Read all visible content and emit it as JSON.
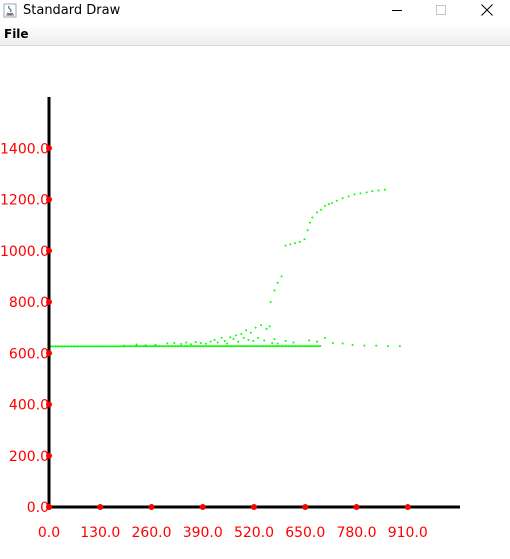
{
  "window": {
    "title": "Standard Draw",
    "icons": {
      "app": "java-cup-icon",
      "minimize": "minimize-icon",
      "maximize": "maximize-icon",
      "close": "close-icon"
    }
  },
  "menu": {
    "file_label": "File"
  },
  "colors": {
    "axis": "#000000",
    "tick": "#ff0000",
    "points": "#00ff00"
  },
  "chart_data": {
    "type": "scatter",
    "title": "",
    "xlabel": "",
    "ylabel": "",
    "xlim": [
      0,
      1040
    ],
    "ylim": [
      0,
      1400
    ],
    "x_ticks": [
      0,
      130,
      260,
      390,
      520,
      650,
      780,
      910
    ],
    "x_tick_labels": [
      "0.0",
      "130.0",
      "260.0",
      "390.0",
      "520.0",
      "650.0",
      "780.0",
      "910.0"
    ],
    "y_ticks": [
      0,
      200,
      400,
      600,
      800,
      1000,
      1200,
      1400
    ],
    "y_tick_labels": [
      "0.0",
      "200.0",
      "400.0",
      "600.0",
      "800.0",
      "1000.0",
      "1200.0",
      "1400.0"
    ],
    "grid": false,
    "series": [
      {
        "points": [
          [
            0,
            627
          ],
          [
            8,
            627
          ],
          [
            16,
            627
          ],
          [
            24,
            627
          ],
          [
            32,
            627
          ],
          [
            40,
            627
          ],
          [
            48,
            627
          ],
          [
            56,
            627
          ],
          [
            64,
            627
          ],
          [
            72,
            627
          ],
          [
            80,
            627
          ],
          [
            88,
            627
          ],
          [
            96,
            627
          ],
          [
            104,
            627
          ],
          [
            112,
            627
          ],
          [
            120,
            627
          ],
          [
            128,
            627
          ],
          [
            136,
            627
          ],
          [
            144,
            627
          ],
          [
            152,
            627
          ],
          [
            160,
            627
          ],
          [
            168,
            627
          ],
          [
            176,
            627
          ],
          [
            184,
            627
          ],
          [
            192,
            627
          ],
          [
            200,
            628
          ],
          [
            208,
            628
          ],
          [
            216,
            628
          ],
          [
            224,
            628
          ],
          [
            232,
            628
          ],
          [
            240,
            628
          ],
          [
            248,
            628
          ],
          [
            256,
            628
          ],
          [
            264,
            628
          ],
          [
            272,
            628
          ],
          [
            280,
            628
          ],
          [
            288,
            628
          ],
          [
            296,
            628
          ],
          [
            304,
            628
          ],
          [
            312,
            628
          ],
          [
            320,
            628
          ],
          [
            328,
            628
          ],
          [
            336,
            628
          ],
          [
            344,
            628
          ],
          [
            352,
            628
          ],
          [
            360,
            628
          ],
          [
            368,
            628
          ],
          [
            376,
            628
          ],
          [
            384,
            628
          ],
          [
            392,
            628
          ],
          [
            400,
            628
          ],
          [
            408,
            628
          ],
          [
            416,
            628
          ],
          [
            424,
            628
          ],
          [
            432,
            628
          ],
          [
            440,
            628
          ],
          [
            448,
            628
          ],
          [
            456,
            628
          ],
          [
            464,
            628
          ],
          [
            472,
            628
          ],
          [
            480,
            628
          ],
          [
            488,
            628
          ],
          [
            496,
            628
          ],
          [
            504,
            628
          ],
          [
            512,
            628
          ],
          [
            520,
            628
          ],
          [
            528,
            628
          ],
          [
            536,
            628
          ],
          [
            544,
            628
          ],
          [
            552,
            628
          ],
          [
            560,
            628
          ],
          [
            568,
            628
          ],
          [
            576,
            628
          ],
          [
            584,
            628
          ],
          [
            592,
            628
          ],
          [
            600,
            628
          ],
          [
            608,
            628
          ],
          [
            616,
            628
          ],
          [
            624,
            628
          ],
          [
            632,
            628
          ],
          [
            640,
            628
          ],
          [
            648,
            628
          ],
          [
            656,
            628
          ],
          [
            664,
            628
          ],
          [
            672,
            628
          ],
          [
            680,
            628
          ],
          [
            688,
            628
          ],
          [
            190,
            630
          ],
          [
            222,
            634
          ],
          [
            245,
            631
          ],
          [
            270,
            633
          ],
          [
            300,
            638
          ],
          [
            318,
            640
          ],
          [
            335,
            636
          ],
          [
            348,
            642
          ],
          [
            360,
            635
          ],
          [
            372,
            644
          ],
          [
            385,
            640
          ],
          [
            398,
            637
          ],
          [
            410,
            646
          ],
          [
            420,
            652
          ],
          [
            428,
            642
          ],
          [
            438,
            660
          ],
          [
            446,
            648
          ],
          [
            452,
            638
          ],
          [
            460,
            662
          ],
          [
            468,
            655
          ],
          [
            474,
            670
          ],
          [
            480,
            645
          ],
          [
            488,
            675
          ],
          [
            494,
            660
          ],
          [
            500,
            690
          ],
          [
            506,
            652
          ],
          [
            512,
            680
          ],
          [
            518,
            648
          ],
          [
            524,
            700
          ],
          [
            530,
            660
          ],
          [
            538,
            710
          ],
          [
            546,
            650
          ],
          [
            552,
            695
          ],
          [
            560,
            705
          ],
          [
            566,
            640
          ],
          [
            572,
            655
          ],
          [
            580,
            638
          ],
          [
            600,
            648
          ],
          [
            620,
            642
          ],
          [
            660,
            650
          ],
          [
            680,
            645
          ],
          [
            700,
            660
          ],
          [
            720,
            640
          ],
          [
            745,
            638
          ],
          [
            770,
            632
          ],
          [
            800,
            630
          ],
          [
            830,
            630
          ],
          [
            860,
            628
          ],
          [
            890,
            628
          ],
          [
            562,
            800
          ],
          [
            572,
            845
          ],
          [
            580,
            875
          ],
          [
            590,
            900
          ],
          [
            600,
            1020
          ],
          [
            612,
            1025
          ],
          [
            624,
            1030
          ],
          [
            636,
            1035
          ],
          [
            648,
            1045
          ],
          [
            656,
            1080
          ],
          [
            662,
            1110
          ],
          [
            668,
            1130
          ],
          [
            680,
            1150
          ],
          [
            690,
            1160
          ],
          [
            700,
            1175
          ],
          [
            710,
            1182
          ],
          [
            718,
            1186
          ],
          [
            730,
            1195
          ],
          [
            745,
            1205
          ],
          [
            760,
            1212
          ],
          [
            775,
            1220
          ],
          [
            790,
            1224
          ],
          [
            806,
            1228
          ],
          [
            820,
            1232
          ],
          [
            836,
            1235
          ],
          [
            852,
            1238
          ]
        ]
      }
    ]
  }
}
